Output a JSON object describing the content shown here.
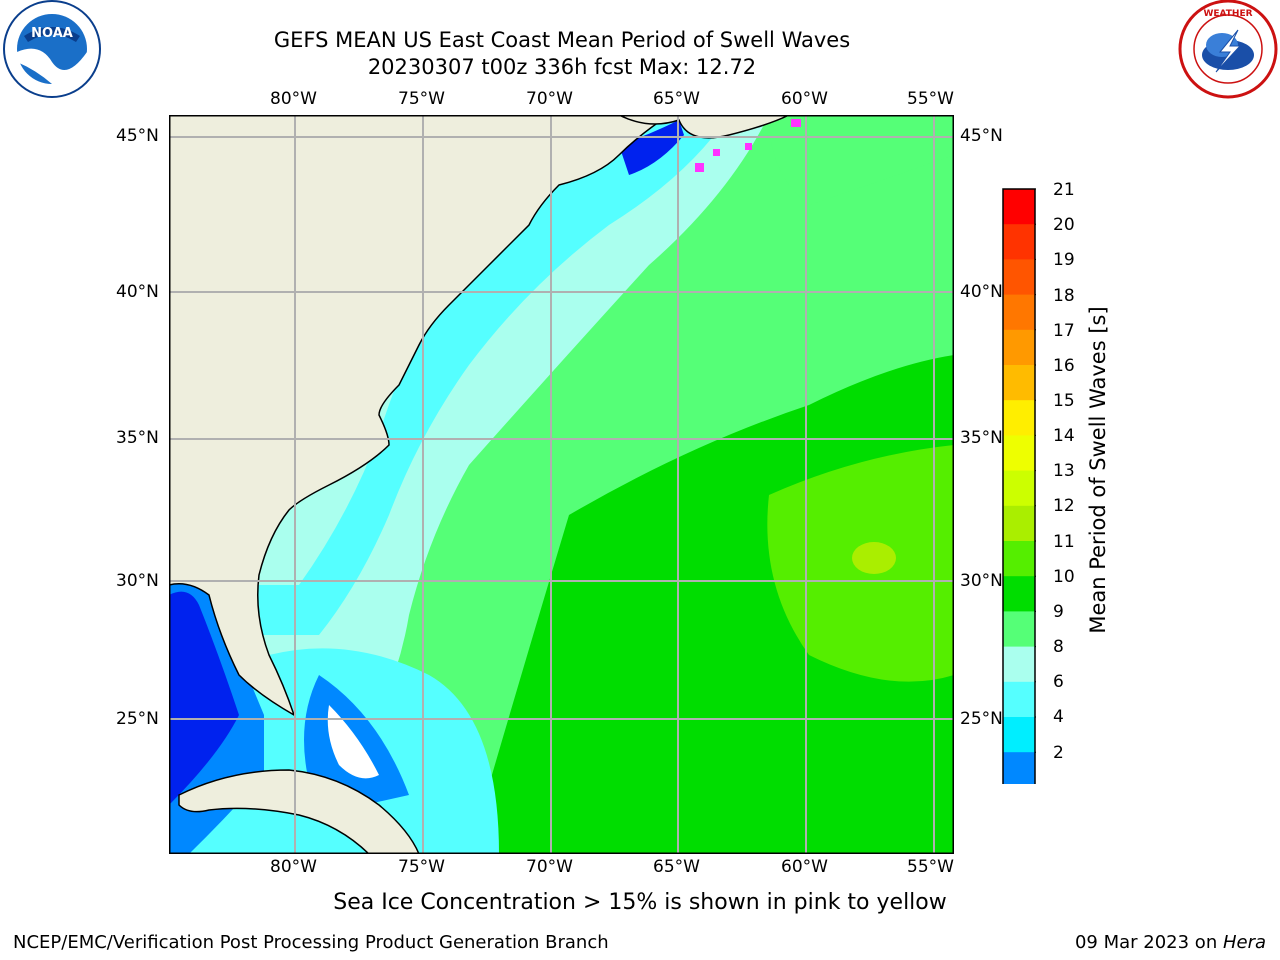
{
  "header": {
    "title_line1": "GEFS MEAN US East Coast Mean Period of Swell Waves",
    "title_line2": "20230307 t00z 336h fcst   Max: 12.72"
  },
  "logos": {
    "left": {
      "name": "NOAA",
      "ring_text": "NATIONAL OCEANIC AND ATMOSPHERIC ADMINISTRATION · U.S. DEPARTMENT OF COMMERCE"
    },
    "right": {
      "name": "National Weather Service",
      "ring_text": "NATIONAL WEATHER SERVICE"
    }
  },
  "map": {
    "lon_labels": [
      "80°W",
      "75°W",
      "70°W",
      "65°W",
      "60°W",
      "55°W"
    ],
    "lat_labels": [
      "45°N",
      "40°N",
      "35°N",
      "30°N",
      "25°N"
    ],
    "gridlines": true,
    "land_color": "#eeeedd",
    "sea_ice_color": "#ff33ff"
  },
  "colorbar": {
    "label": "Mean Period of Swell Waves [s]",
    "ticks": [
      "21",
      "20",
      "19",
      "18",
      "17",
      "16",
      "15",
      "14",
      "13",
      "12",
      "11",
      "10",
      "9",
      "8",
      "6",
      "4",
      "2"
    ],
    "colors": [
      "#ff0000",
      "#ff3300",
      "#ff5500",
      "#ff7700",
      "#ff9900",
      "#ffbb00",
      "#ffee00",
      "#eeff00",
      "#ccff00",
      "#aaee00",
      "#55ee00",
      "#00dd00",
      "#55ff77",
      "#aaffee",
      "#55ffff",
      "#00eeff",
      "#0088ff"
    ],
    "extend_color": "#0022ee"
  },
  "caption": "Sea Ice Concentration > 15% is shown in pink to yellow",
  "footer": {
    "left": "NCEP/EMC/Verification Post Processing Product Generation Branch",
    "right_date": "09 Mar 2023 on ",
    "right_host": "Hera"
  }
}
